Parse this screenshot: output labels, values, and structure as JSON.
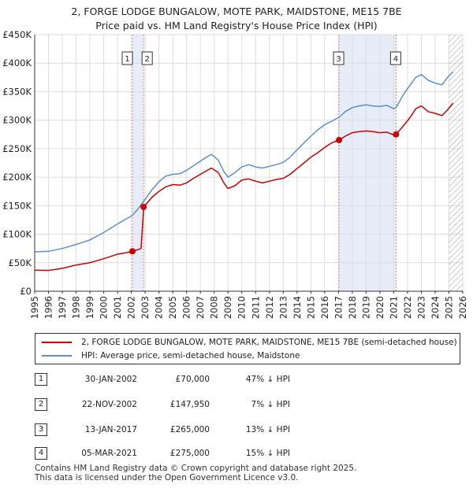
{
  "chart_data": {
    "type": "line",
    "title": "2, FORGE LODGE BUNGALOW, MOTE PARK, MAIDSTONE, ME15 7BE",
    "subtitle": "Price paid vs. HM Land Registry's House Price Index (HPI)",
    "xlim": [
      1995,
      2026
    ],
    "ylim": [
      0,
      450000
    ],
    "x_ticks": [
      1995,
      1996,
      1997,
      1998,
      1999,
      2000,
      2001,
      2002,
      2003,
      2004,
      2005,
      2006,
      2007,
      2008,
      2009,
      2010,
      2011,
      2012,
      2013,
      2014,
      2015,
      2016,
      2017,
      2018,
      2019,
      2020,
      2021,
      2022,
      2023,
      2024,
      2025,
      2026
    ],
    "y_ticks": [
      {
        "value": 0,
        "label": "£0"
      },
      {
        "value": 50000,
        "label": "£50K"
      },
      {
        "value": 100000,
        "label": "£100K"
      },
      {
        "value": 150000,
        "label": "£150K"
      },
      {
        "value": 200000,
        "label": "£200K"
      },
      {
        "value": 250000,
        "label": "£250K"
      },
      {
        "value": 300000,
        "label": "£300K"
      },
      {
        "value": 350000,
        "label": "£350K"
      },
      {
        "value": 400000,
        "label": "£400K"
      },
      {
        "value": 450000,
        "label": "£450K"
      }
    ],
    "grid": true,
    "forecast_hatch_start": 2025.0,
    "series": [
      {
        "name": "2, FORGE LODGE BUNGALOW, MOTE PARK, MAIDSTONE, ME15 7BE (semi-detached house)",
        "color": "#cc0000",
        "points": [
          [
            1995.0,
            37000
          ],
          [
            1996.0,
            36500
          ],
          [
            1997.0,
            40000
          ],
          [
            1998.0,
            46000
          ],
          [
            1999.0,
            50000
          ],
          [
            2000.0,
            57000
          ],
          [
            2001.0,
            65000
          ],
          [
            2001.5,
            67000
          ],
          [
            2002.08,
            70000
          ],
          [
            2002.5,
            73000
          ],
          [
            2002.7,
            75000
          ],
          [
            2002.9,
            147950
          ],
          [
            2003.5,
            165000
          ],
          [
            2004.0,
            175000
          ],
          [
            2004.5,
            183000
          ],
          [
            2005.0,
            187000
          ],
          [
            2005.5,
            186000
          ],
          [
            2006.0,
            190000
          ],
          [
            2006.5,
            198000
          ],
          [
            2007.0,
            205000
          ],
          [
            2007.5,
            212000
          ],
          [
            2007.8,
            216000
          ],
          [
            2008.3,
            208000
          ],
          [
            2008.7,
            190000
          ],
          [
            2009.0,
            180000
          ],
          [
            2009.5,
            185000
          ],
          [
            2010.0,
            195000
          ],
          [
            2010.5,
            197000
          ],
          [
            2011.0,
            193000
          ],
          [
            2011.5,
            190000
          ],
          [
            2012.0,
            193000
          ],
          [
            2012.5,
            196000
          ],
          [
            2013.0,
            198000
          ],
          [
            2013.5,
            205000
          ],
          [
            2014.0,
            215000
          ],
          [
            2014.5,
            225000
          ],
          [
            2015.0,
            235000
          ],
          [
            2015.5,
            243000
          ],
          [
            2016.0,
            252000
          ],
          [
            2016.5,
            260000
          ],
          [
            2017.04,
            265000
          ],
          [
            2017.5,
            272000
          ],
          [
            2018.0,
            278000
          ],
          [
            2018.5,
            280000
          ],
          [
            2019.0,
            281000
          ],
          [
            2019.5,
            280000
          ],
          [
            2020.0,
            278000
          ],
          [
            2020.5,
            279000
          ],
          [
            2021.0,
            274000
          ],
          [
            2021.17,
            275000
          ],
          [
            2021.7,
            290000
          ],
          [
            2022.2,
            305000
          ],
          [
            2022.6,
            320000
          ],
          [
            2023.0,
            325000
          ],
          [
            2023.5,
            315000
          ],
          [
            2024.0,
            312000
          ],
          [
            2024.5,
            308000
          ],
          [
            2024.9,
            318000
          ],
          [
            2025.3,
            330000
          ]
        ]
      },
      {
        "name": "HPI: Average price, semi-detached house, Maidstone",
        "color": "#5b8fd0",
        "points": [
          [
            1995.0,
            69000
          ],
          [
            1996.0,
            70000
          ],
          [
            1997.0,
            75000
          ],
          [
            1998.0,
            82000
          ],
          [
            1999.0,
            90000
          ],
          [
            2000.0,
            103000
          ],
          [
            2001.0,
            118000
          ],
          [
            2001.5,
            125000
          ],
          [
            2002.08,
            133000
          ],
          [
            2002.5,
            145000
          ],
          [
            2002.9,
            158000
          ],
          [
            2003.5,
            178000
          ],
          [
            2004.0,
            192000
          ],
          [
            2004.5,
            202000
          ],
          [
            2005.0,
            205000
          ],
          [
            2005.5,
            206000
          ],
          [
            2006.0,
            212000
          ],
          [
            2006.5,
            220000
          ],
          [
            2007.0,
            228000
          ],
          [
            2007.5,
            236000
          ],
          [
            2007.8,
            240000
          ],
          [
            2008.3,
            230000
          ],
          [
            2008.7,
            210000
          ],
          [
            2009.0,
            200000
          ],
          [
            2009.5,
            208000
          ],
          [
            2010.0,
            218000
          ],
          [
            2010.5,
            222000
          ],
          [
            2011.0,
            218000
          ],
          [
            2011.5,
            216000
          ],
          [
            2012.0,
            219000
          ],
          [
            2012.5,
            222000
          ],
          [
            2013.0,
            226000
          ],
          [
            2013.5,
            235000
          ],
          [
            2014.0,
            248000
          ],
          [
            2014.5,
            260000
          ],
          [
            2015.0,
            272000
          ],
          [
            2015.5,
            283000
          ],
          [
            2016.0,
            292000
          ],
          [
            2016.5,
            298000
          ],
          [
            2017.04,
            305000
          ],
          [
            2017.5,
            315000
          ],
          [
            2018.0,
            322000
          ],
          [
            2018.5,
            325000
          ],
          [
            2019.0,
            327000
          ],
          [
            2019.5,
            325000
          ],
          [
            2020.0,
            324000
          ],
          [
            2020.5,
            326000
          ],
          [
            2021.0,
            320000
          ],
          [
            2021.17,
            322000
          ],
          [
            2021.7,
            345000
          ],
          [
            2022.2,
            362000
          ],
          [
            2022.6,
            375000
          ],
          [
            2023.0,
            380000
          ],
          [
            2023.5,
            370000
          ],
          [
            2024.0,
            365000
          ],
          [
            2024.5,
            362000
          ],
          [
            2024.9,
            375000
          ],
          [
            2025.3,
            385000
          ]
        ]
      }
    ],
    "sales": [
      {
        "id": "1",
        "x": 2002.08,
        "price": 70000,
        "date": "30-JAN-2002",
        "price_label": "£70,000",
        "hpi": "47% ↓ HPI"
      },
      {
        "id": "2",
        "x": 2002.89,
        "price": 147950,
        "date": "22-NOV-2002",
        "price_label": "£147,950",
        "hpi": "7% ↓ HPI"
      },
      {
        "id": "3",
        "x": 2017.04,
        "price": 265000,
        "date": "13-JAN-2017",
        "price_label": "£265,000",
        "hpi": "13% ↓ HPI"
      },
      {
        "id": "4",
        "x": 2021.17,
        "price": 275000,
        "date": "05-MAR-2021",
        "price_label": "£275,000",
        "hpi": "15% ↓ HPI"
      }
    ],
    "highlight_bands": [
      [
        2002.08,
        2002.89
      ],
      [
        2017.04,
        2021.17
      ]
    ]
  },
  "legend": {
    "property_label": "2, FORGE LODGE BUNGALOW, MOTE PARK, MAIDSTONE, ME15 7BE (semi-detached house)",
    "hpi_label": "HPI: Average price, semi-detached house, Maidstone",
    "property_color": "#cc0000",
    "hpi_color": "#5b8fd0"
  },
  "footer": {
    "line1": "Contains HM Land Registry data © Crown copyright and database right 2025.",
    "line2": "This data is licensed under the Open Government Licence v3.0."
  }
}
